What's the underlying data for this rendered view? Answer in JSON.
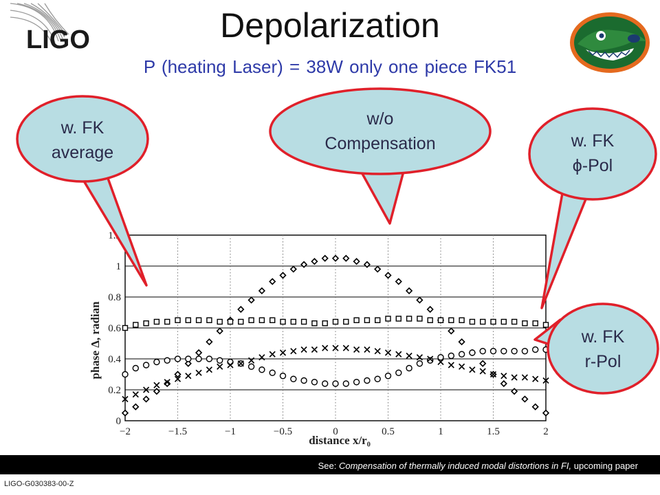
{
  "title": "Depolarization",
  "subtitle": "P (heating Laser) = 38W    only one piece FK51",
  "logo_text": "LIGO",
  "callouts": [
    {
      "line1": "w. FK",
      "line2": "average"
    },
    {
      "line1": "w/o",
      "line2": "Compensation"
    },
    {
      "line1": "w. FK",
      "line2": "ϕ-Pol"
    },
    {
      "line1": "w. FK",
      "line2": "r-Pol"
    }
  ],
  "footer": {
    "prefix": "See: ",
    "italic": "Compensation of thermally induced modal distortions in FI,",
    "suffix": " upcoming paper"
  },
  "doc_id": "LIGO-G030383-00-Z",
  "colors": {
    "bubble_fill": "#b8dde3",
    "bubble_stroke": "#e0202a",
    "subtitle": "#2e3aa8"
  },
  "chart_data": {
    "type": "scatter",
    "xlabel": "distance x/r₀",
    "ylabel": "phase Δ, radian",
    "xlim": [
      -2,
      2
    ],
    "ylim": [
      0,
      1.2
    ],
    "x_ticks": [
      "−2",
      "−1.5",
      "−1",
      "−0.5",
      "0",
      "0.5",
      "1",
      "1.5",
      "2"
    ],
    "y_ticks": [
      "0",
      "0.2",
      "0.4",
      "0.6",
      "0.8",
      "1",
      "1.2"
    ],
    "grid": "horizontal",
    "series": [
      {
        "marker": "diamond",
        "x": [
          -2,
          -1.9,
          -1.8,
          -1.7,
          -1.6,
          -1.5,
          -1.4,
          -1.3,
          -1.2,
          -1.1,
          -1.0,
          -0.9,
          -0.8,
          -0.7,
          -0.6,
          -0.5,
          -0.4,
          -0.3,
          -0.2,
          -0.1,
          0,
          0.1,
          0.2,
          0.3,
          0.4,
          0.5,
          0.6,
          0.7,
          0.8,
          0.9,
          1.0,
          1.1,
          1.2,
          1.3,
          1.4,
          1.5,
          1.6,
          1.7,
          1.8,
          1.9,
          2.0
        ],
        "y": [
          0.05,
          0.09,
          0.14,
          0.19,
          0.24,
          0.3,
          0.37,
          0.44,
          0.51,
          0.58,
          0.65,
          0.72,
          0.78,
          0.84,
          0.9,
          0.94,
          0.98,
          1.01,
          1.03,
          1.05,
          1.05,
          1.05,
          1.03,
          1.01,
          0.98,
          0.94,
          0.9,
          0.84,
          0.78,
          0.72,
          0.65,
          0.58,
          0.51,
          0.44,
          0.37,
          0.3,
          0.24,
          0.19,
          0.14,
          0.09,
          0.05
        ]
      },
      {
        "marker": "square",
        "x": [
          -2,
          -1.9,
          -1.8,
          -1.7,
          -1.6,
          -1.5,
          -1.4,
          -1.3,
          -1.2,
          -1.1,
          -1.0,
          -0.9,
          -0.8,
          -0.7,
          -0.6,
          -0.5,
          -0.4,
          -0.3,
          -0.2,
          -0.1,
          0,
          0.1,
          0.2,
          0.3,
          0.4,
          0.5,
          0.6,
          0.7,
          0.8,
          0.9,
          1.0,
          1.1,
          1.2,
          1.3,
          1.4,
          1.5,
          1.6,
          1.7,
          1.8,
          1.9,
          2.0
        ],
        "y": [
          0.6,
          0.62,
          0.63,
          0.64,
          0.64,
          0.65,
          0.65,
          0.65,
          0.65,
          0.64,
          0.64,
          0.64,
          0.65,
          0.65,
          0.65,
          0.64,
          0.64,
          0.64,
          0.63,
          0.63,
          0.64,
          0.64,
          0.65,
          0.65,
          0.65,
          0.66,
          0.66,
          0.66,
          0.66,
          0.65,
          0.65,
          0.65,
          0.65,
          0.64,
          0.64,
          0.64,
          0.64,
          0.64,
          0.63,
          0.63,
          0.62
        ]
      },
      {
        "marker": "circle",
        "x": [
          -2,
          -1.9,
          -1.8,
          -1.7,
          -1.6,
          -1.5,
          -1.4,
          -1.3,
          -1.2,
          -1.1,
          -1.0,
          -0.9,
          -0.8,
          -0.7,
          -0.6,
          -0.5,
          -0.4,
          -0.3,
          -0.2,
          -0.1,
          0,
          0.1,
          0.2,
          0.3,
          0.4,
          0.5,
          0.6,
          0.7,
          0.8,
          0.9,
          1.0,
          1.1,
          1.2,
          1.3,
          1.4,
          1.5,
          1.6,
          1.7,
          1.8,
          1.9,
          2.0
        ],
        "y": [
          0.3,
          0.34,
          0.36,
          0.38,
          0.39,
          0.4,
          0.4,
          0.4,
          0.4,
          0.39,
          0.38,
          0.37,
          0.35,
          0.33,
          0.31,
          0.29,
          0.27,
          0.26,
          0.25,
          0.24,
          0.24,
          0.24,
          0.25,
          0.26,
          0.27,
          0.29,
          0.31,
          0.34,
          0.37,
          0.39,
          0.41,
          0.42,
          0.43,
          0.44,
          0.45,
          0.45,
          0.45,
          0.45,
          0.45,
          0.46,
          0.46
        ]
      },
      {
        "marker": "cross",
        "x": [
          -2,
          -1.9,
          -1.8,
          -1.7,
          -1.6,
          -1.5,
          -1.4,
          -1.3,
          -1.2,
          -1.1,
          -1.0,
          -0.9,
          -0.8,
          -0.7,
          -0.6,
          -0.5,
          -0.4,
          -0.3,
          -0.2,
          -0.1,
          0,
          0.1,
          0.2,
          0.3,
          0.4,
          0.5,
          0.6,
          0.7,
          0.8,
          0.9,
          1.0,
          1.1,
          1.2,
          1.3,
          1.4,
          1.5,
          1.6,
          1.7,
          1.8,
          1.9,
          2.0
        ],
        "y": [
          0.14,
          0.17,
          0.2,
          0.23,
          0.25,
          0.27,
          0.29,
          0.31,
          0.33,
          0.35,
          0.36,
          0.37,
          0.39,
          0.41,
          0.43,
          0.44,
          0.45,
          0.46,
          0.46,
          0.47,
          0.47,
          0.47,
          0.46,
          0.46,
          0.45,
          0.44,
          0.43,
          0.42,
          0.41,
          0.4,
          0.38,
          0.36,
          0.35,
          0.33,
          0.32,
          0.3,
          0.29,
          0.28,
          0.28,
          0.27,
          0.26
        ]
      }
    ]
  }
}
